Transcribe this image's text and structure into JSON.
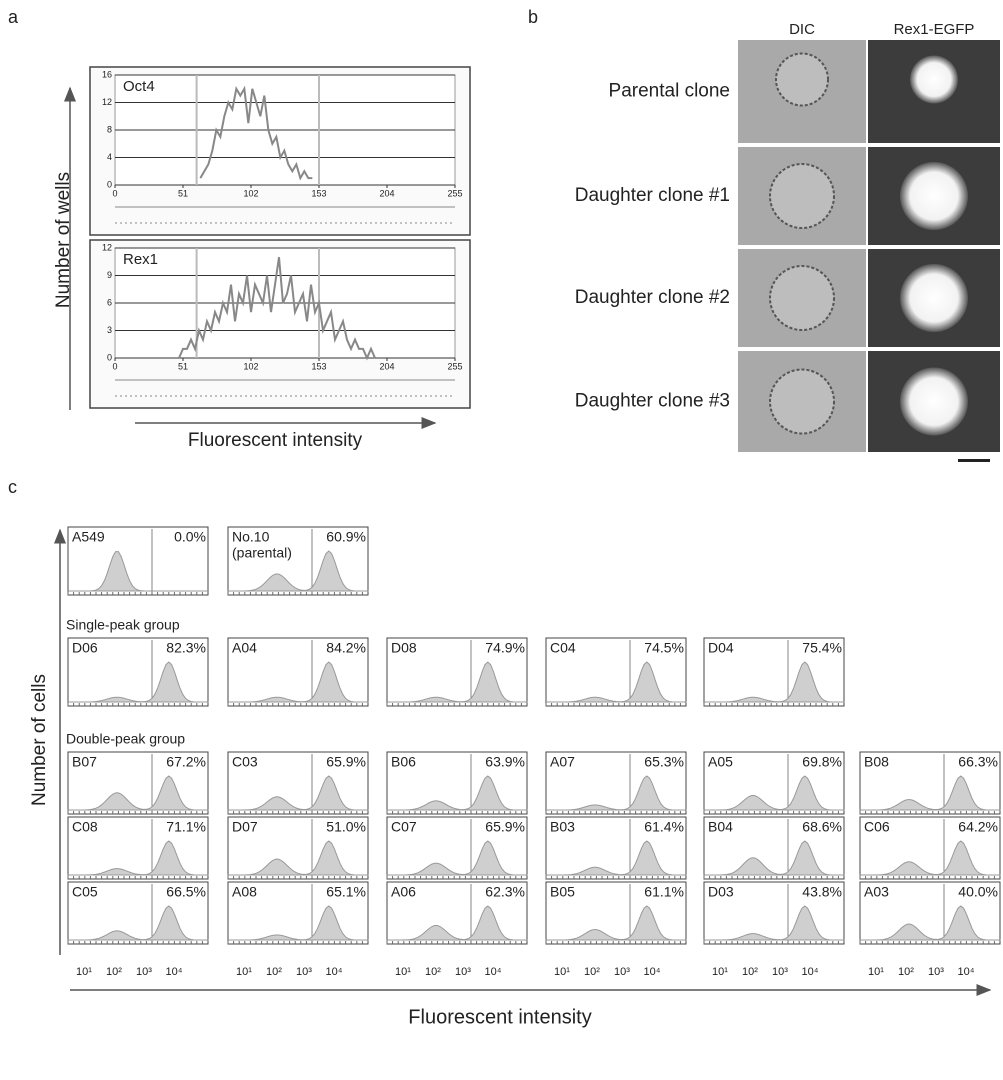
{
  "panel_labels": [
    "a",
    "b",
    "c"
  ],
  "panel_a": {
    "y_axis_label": "Number of wells",
    "x_axis_label": "Fluorescent intensity"
  },
  "chart_data": [
    {
      "type": "line",
      "title": "Oct4",
      "x": [
        64,
        67,
        70,
        73,
        76,
        79,
        82,
        85,
        88,
        91,
        94,
        97,
        100,
        103,
        106,
        109,
        112,
        115,
        118,
        121,
        124,
        127,
        130,
        133,
        136,
        139,
        142,
        145,
        148
      ],
      "values": [
        1,
        2,
        3,
        5,
        8,
        7,
        10,
        12,
        11,
        14,
        13,
        14,
        9,
        14,
        12,
        10,
        13,
        8,
        6,
        7,
        4,
        5,
        3,
        2,
        3,
        1,
        2,
        1,
        1
      ],
      "color": "#888888",
      "xlim": [
        0,
        255
      ],
      "xticks": [
        0,
        51,
        102,
        153,
        204,
        255
      ],
      "ylim": [
        0,
        16
      ],
      "yticks": [
        0,
        4,
        8,
        12,
        16
      ],
      "grid": true
    },
    {
      "type": "line",
      "title": "Rex1",
      "x": [
        48,
        51,
        54,
        57,
        60,
        63,
        66,
        69,
        72,
        75,
        78,
        81,
        84,
        87,
        90,
        93,
        96,
        99,
        102,
        105,
        108,
        111,
        114,
        117,
        120,
        123,
        126,
        129,
        132,
        135,
        138,
        141,
        144,
        147,
        150,
        153,
        156,
        159,
        162,
        165,
        168,
        171,
        174,
        177,
        180,
        183,
        186,
        189,
        192,
        195
      ],
      "values": [
        0,
        1,
        1,
        2,
        1,
        3,
        2,
        4,
        3,
        5,
        4,
        6,
        5,
        8,
        4,
        7,
        6,
        9,
        5,
        8,
        7,
        6,
        9,
        5,
        8,
        11,
        6,
        7,
        9,
        5,
        6,
        7,
        4,
        8,
        5,
        6,
        3,
        4,
        5,
        2,
        3,
        4,
        2,
        1,
        2,
        1,
        1,
        0,
        1,
        0
      ],
      "color": "#888888",
      "xlim": [
        0,
        255
      ],
      "xticks": [
        0,
        51,
        102,
        153,
        204,
        255
      ],
      "ylim": [
        0,
        12
      ],
      "yticks": [
        0,
        3,
        6,
        9,
        12
      ],
      "grid": true
    }
  ],
  "panel_b": {
    "columns": [
      "DIC",
      "Rex1-EGFP"
    ],
    "rows": [
      "Parental clone",
      "Daughter clone #1",
      "Daughter clone #2",
      "Daughter clone #3"
    ]
  },
  "panel_c": {
    "y_axis_label": "Number of cells",
    "x_axis_label": "Fluorescent intensity",
    "x_tick_labels": [
      "10¹",
      "10²",
      "10³",
      "10⁴"
    ],
    "controls": [
      {
        "name": "A549",
        "percent": "0.0%"
      },
      {
        "name": "No.10",
        "note": "(parental)",
        "percent": "60.9%"
      }
    ],
    "groups": [
      {
        "label": "Single-peak group",
        "rows": [
          [
            {
              "name": "D06",
              "percent": "82.3%"
            },
            {
              "name": "A04",
              "percent": "84.2%"
            },
            {
              "name": "D08",
              "percent": "74.9%"
            },
            {
              "name": "C04",
              "percent": "74.5%"
            },
            {
              "name": "D04",
              "percent": "75.4%"
            }
          ]
        ]
      },
      {
        "label": "Double-peak group",
        "rows": [
          [
            {
              "name": "B07",
              "percent": "67.2%"
            },
            {
              "name": "C03",
              "percent": "65.9%"
            },
            {
              "name": "B06",
              "percent": "63.9%"
            },
            {
              "name": "A07",
              "percent": "65.3%"
            },
            {
              "name": "A05",
              "percent": "69.8%"
            },
            {
              "name": "B08",
              "percent": "66.3%"
            }
          ],
          [
            {
              "name": "C08",
              "percent": "71.1%"
            },
            {
              "name": "D07",
              "percent": "51.0%"
            },
            {
              "name": "C07",
              "percent": "65.9%"
            },
            {
              "name": "B03",
              "percent": "61.4%"
            },
            {
              "name": "B04",
              "percent": "68.6%"
            },
            {
              "name": "C06",
              "percent": "64.2%"
            }
          ],
          [
            {
              "name": "C05",
              "percent": "66.5%"
            },
            {
              "name": "A08",
              "percent": "65.1%"
            },
            {
              "name": "A06",
              "percent": "62.3%"
            },
            {
              "name": "B05",
              "percent": "61.1%"
            },
            {
              "name": "D03",
              "percent": "43.8%"
            },
            {
              "name": "A03",
              "percent": "40.0%"
            }
          ]
        ]
      }
    ]
  }
}
